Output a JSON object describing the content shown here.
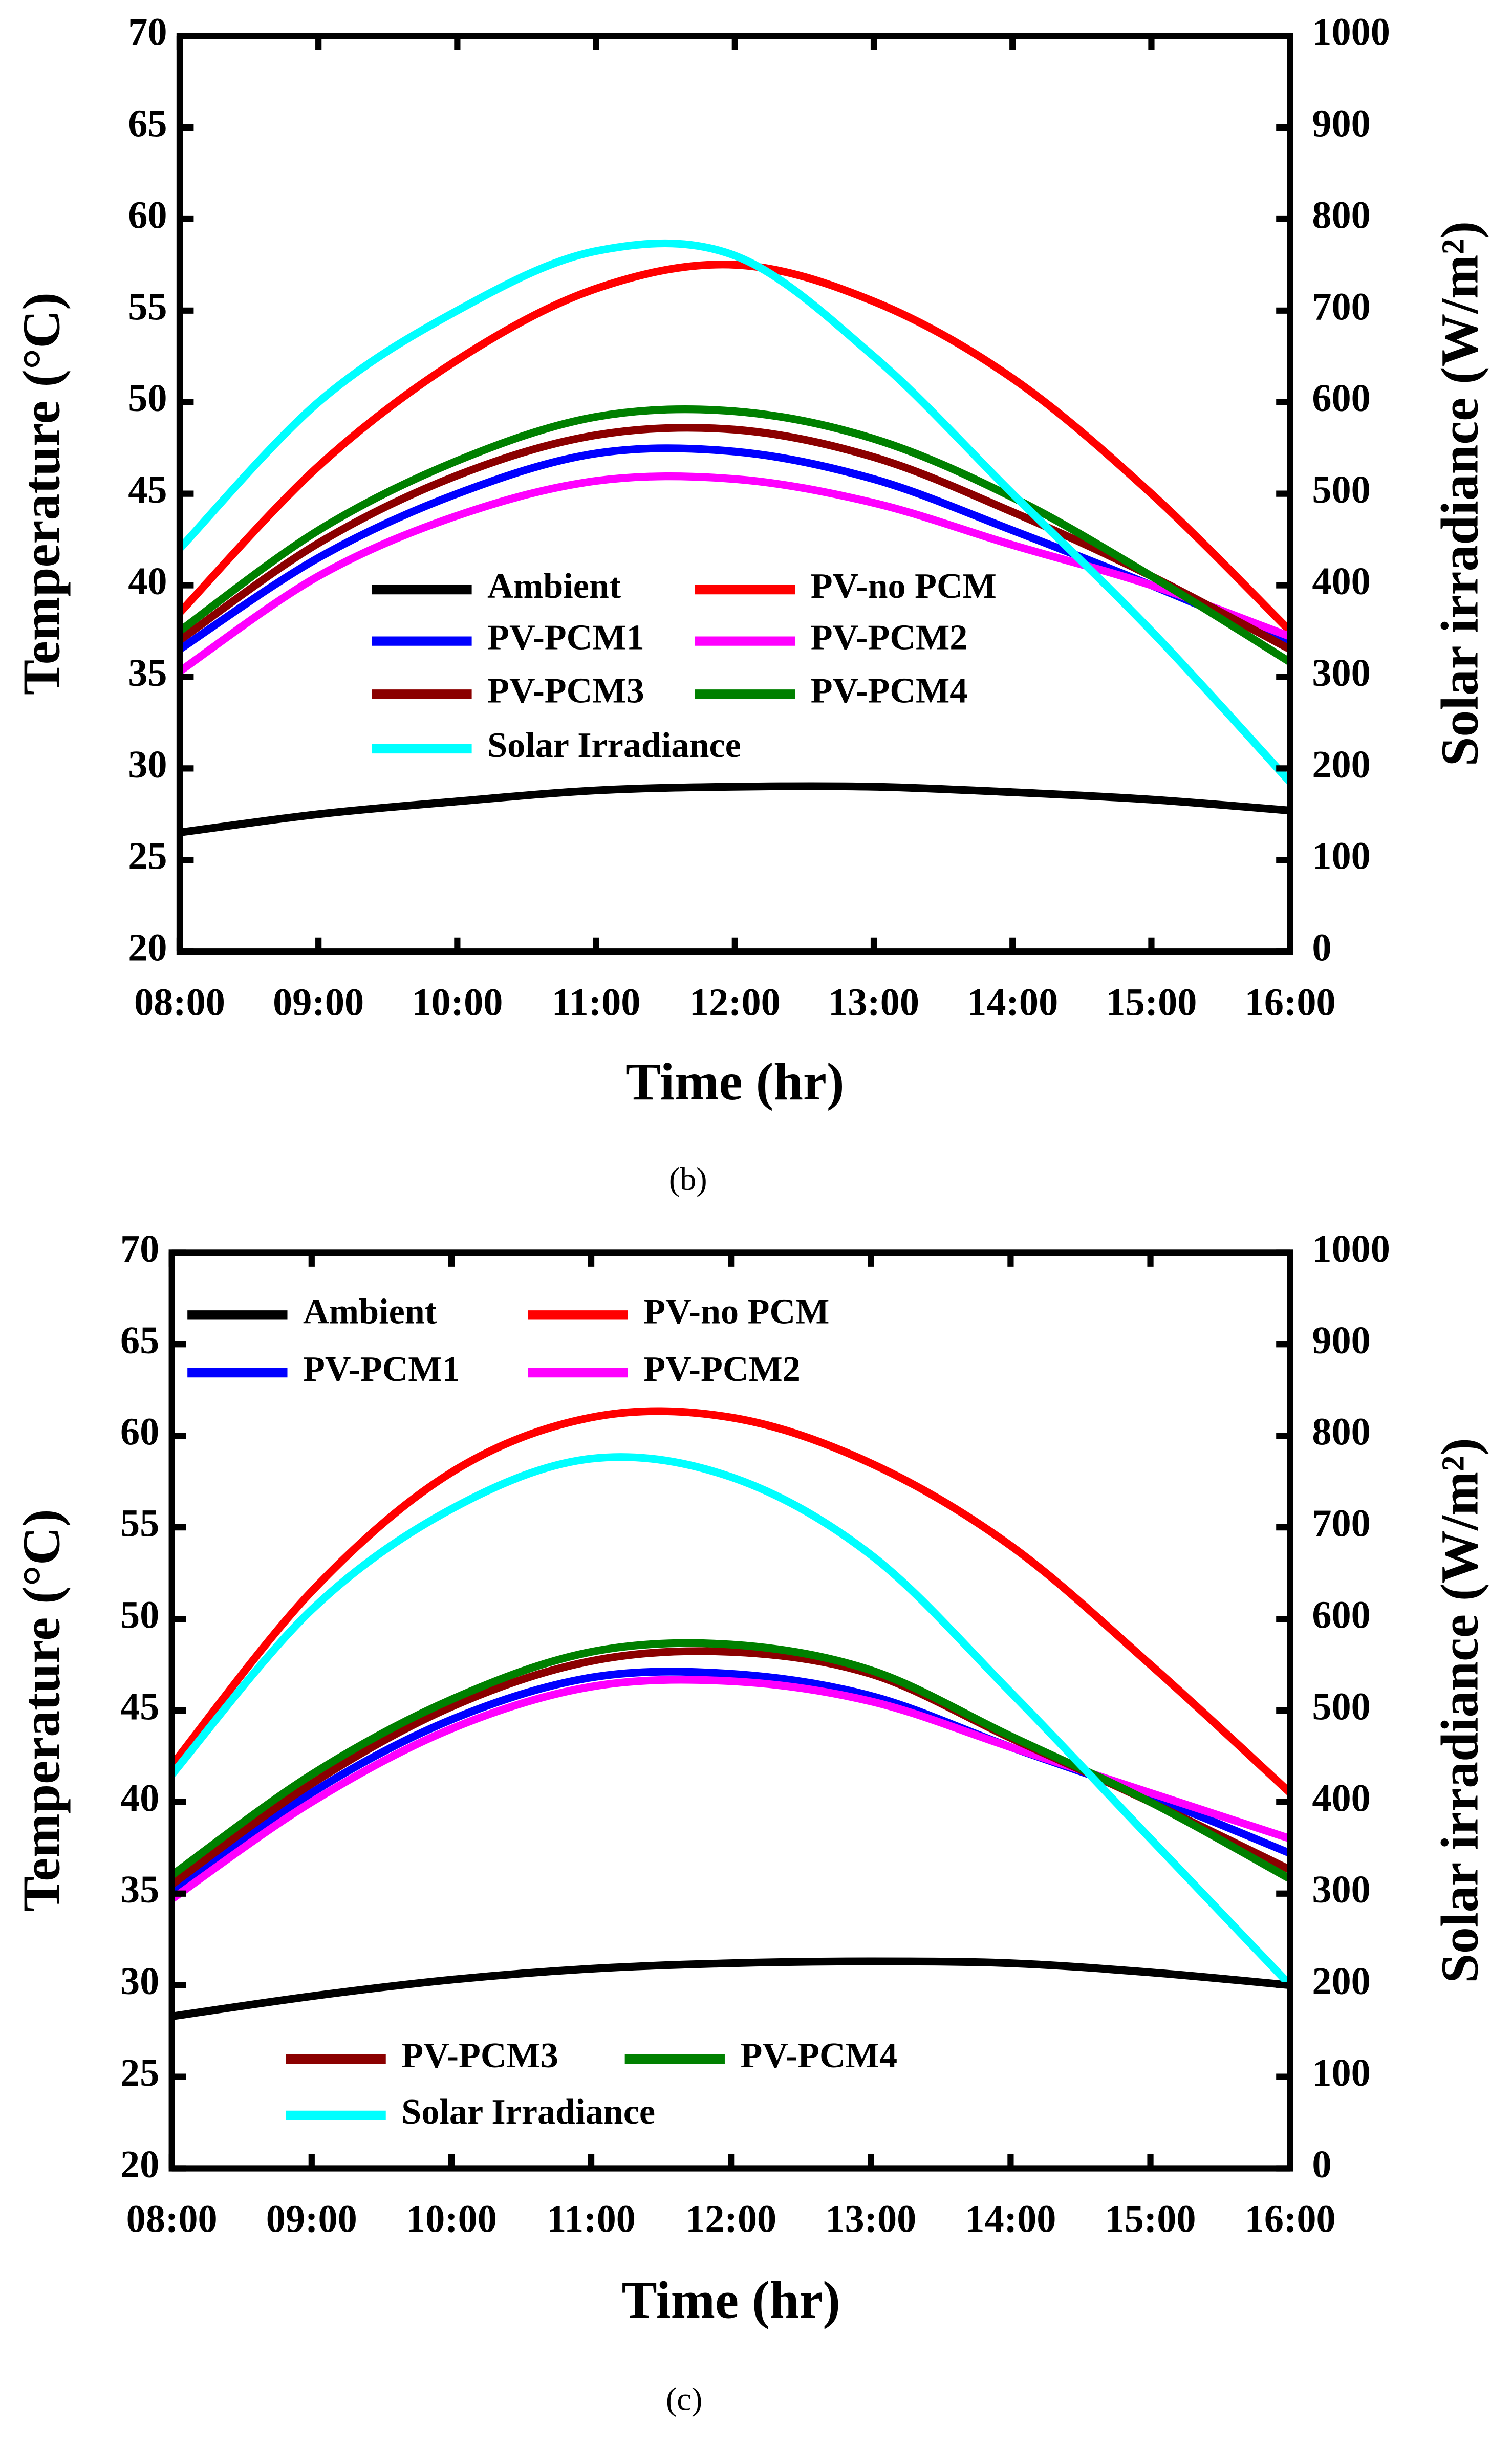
{
  "chart_data": [
    {
      "type": "line",
      "subtitle": "(b)",
      "xlabel": "Time (hr)",
      "ylabel": "Temperature (°C)",
      "y2label": "Solar irradiance (W/m²)",
      "x": [
        8,
        9,
        10,
        11,
        12,
        13,
        14,
        15,
        16
      ],
      "xlim": [
        8,
        16
      ],
      "xticks": [
        {
          "value": 8,
          "label": "08:00"
        },
        {
          "value": 9,
          "label": "09:00"
        },
        {
          "value": 10,
          "label": "10:00"
        },
        {
          "value": 11,
          "label": "11:00"
        },
        {
          "value": 12,
          "label": "12:00"
        },
        {
          "value": 13,
          "label": "13:00"
        },
        {
          "value": 14,
          "label": "14:00"
        },
        {
          "value": 15,
          "label": "15:00"
        },
        {
          "value": 16,
          "label": "16:00"
        }
      ],
      "ylim": [
        20,
        70
      ],
      "yticks": [
        20,
        25,
        30,
        35,
        40,
        45,
        50,
        55,
        60,
        65,
        70
      ],
      "y2lim": [
        0,
        1000
      ],
      "y2ticks": [
        0,
        100,
        200,
        300,
        400,
        500,
        600,
        700,
        800,
        900,
        1000
      ],
      "series": [
        {
          "name": "Ambient",
          "color": "#000000",
          "values": [
            26.5,
            27.5,
            28.2,
            28.8,
            29.0,
            29.0,
            28.7,
            28.3,
            27.7
          ]
        },
        {
          "name": "PV-no PCM",
          "color": "#ff0000",
          "values": [
            38.5,
            46.5,
            52.3,
            56.2,
            57.5,
            55.5,
            51.3,
            45.0,
            37.5
          ]
        },
        {
          "name": "PV-PCM1",
          "color": "#0000ff",
          "values": [
            36.5,
            41.5,
            45.0,
            47.2,
            47.3,
            45.8,
            43.0,
            40.0,
            36.8
          ]
        },
        {
          "name": "PV-PCM2",
          "color": "#ff00ff",
          "values": [
            35.3,
            40.5,
            43.8,
            45.7,
            45.8,
            44.5,
            42.2,
            40.0,
            37.2
          ]
        },
        {
          "name": "PV-PCM3",
          "color": "#8b0000",
          "values": [
            37.0,
            42.3,
            46.0,
            48.2,
            48.5,
            47.0,
            44.0,
            40.5,
            36.5
          ]
        },
        {
          "name": "PV-PCM4",
          "color": "#008000",
          "values": [
            37.5,
            43.0,
            46.8,
            49.2,
            49.5,
            48.0,
            44.8,
            40.5,
            35.8
          ]
        },
        {
          "name": "Solar Irradiance",
          "color": "#00ffff",
          "axis": "y2",
          "values": [
            440,
            600,
            700,
            765,
            760,
            650,
            500,
            350,
            185
          ]
        }
      ]
    },
    {
      "type": "line",
      "subtitle": "(c)",
      "xlabel": "Time (hr)",
      "ylabel": "Temperature (°C)",
      "y2label": "Solar irradiance (W/m²)",
      "x": [
        8,
        9,
        10,
        11,
        12,
        13,
        14,
        15,
        16
      ],
      "xlim": [
        8,
        16
      ],
      "xticks": [
        {
          "value": 8,
          "label": "08:00"
        },
        {
          "value": 9,
          "label": "09:00"
        },
        {
          "value": 10,
          "label": "10:00"
        },
        {
          "value": 11,
          "label": "11:00"
        },
        {
          "value": 12,
          "label": "12:00"
        },
        {
          "value": 13,
          "label": "13:00"
        },
        {
          "value": 14,
          "label": "14:00"
        },
        {
          "value": 15,
          "label": "15:00"
        },
        {
          "value": 16,
          "label": "16:00"
        }
      ],
      "ylim": [
        20,
        70
      ],
      "yticks": [
        20,
        25,
        30,
        35,
        40,
        45,
        50,
        55,
        60,
        65,
        70
      ],
      "y2lim": [
        0,
        1000
      ],
      "y2ticks": [
        0,
        100,
        200,
        300,
        400,
        500,
        600,
        700,
        800,
        900,
        1000
      ],
      "series": [
        {
          "name": "Ambient",
          "color": "#000000",
          "values": [
            28.3,
            29.4,
            30.3,
            30.9,
            31.2,
            31.3,
            31.2,
            30.7,
            30.0
          ]
        },
        {
          "name": "PV-no PCM",
          "color": "#ff0000",
          "values": [
            42.0,
            51.5,
            58.0,
            61.0,
            61.0,
            58.5,
            54.0,
            47.5,
            40.5
          ]
        },
        {
          "name": "PV-PCM1",
          "color": "#0000ff",
          "values": [
            35.0,
            40.5,
            44.5,
            46.8,
            47.0,
            45.8,
            43.0,
            40.3,
            37.2
          ]
        },
        {
          "name": "PV-PCM2",
          "color": "#ff00ff",
          "values": [
            34.7,
            40.0,
            44.0,
            46.3,
            46.6,
            45.5,
            43.0,
            40.5,
            38.0
          ]
        },
        {
          "name": "PV-PCM3",
          "color": "#8b0000",
          "values": [
            35.5,
            41.0,
            45.2,
            47.7,
            48.2,
            47.0,
            43.5,
            40.0,
            36.3
          ]
        },
        {
          "name": "PV-PCM4",
          "color": "#008000",
          "values": [
            36.0,
            41.5,
            45.6,
            48.2,
            48.6,
            47.2,
            43.6,
            40.0,
            35.8
          ]
        },
        {
          "name": "Solar Irradiance",
          "color": "#00ffff",
          "axis": "y2",
          "values": [
            430,
            610,
            720,
            775,
            755,
            670,
            520,
            360,
            200
          ]
        }
      ]
    }
  ]
}
